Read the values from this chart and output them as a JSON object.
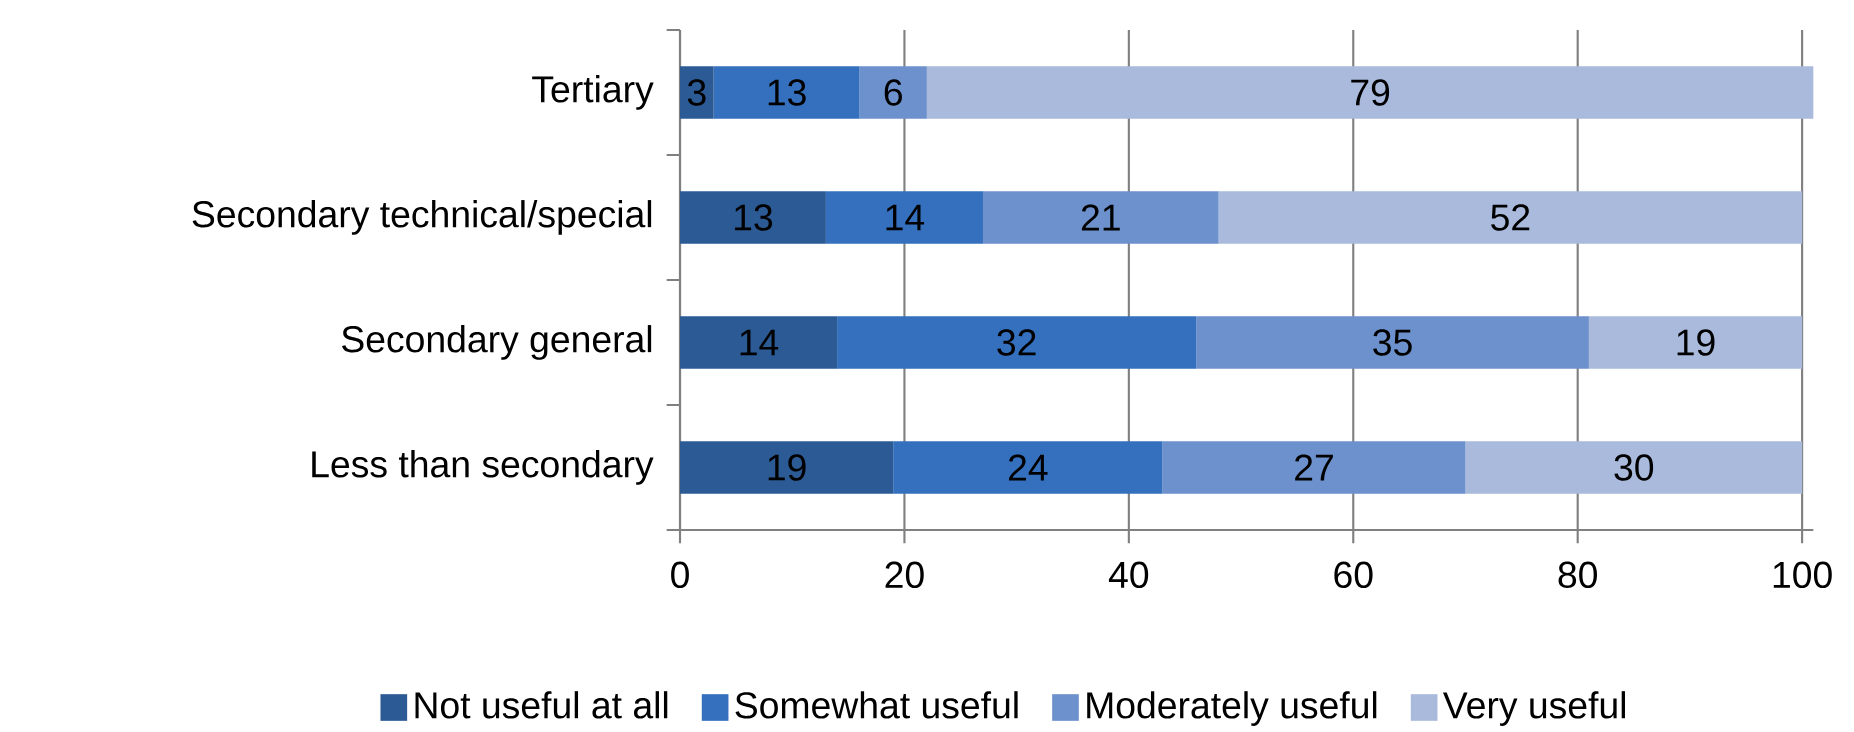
{
  "chart_data": {
    "type": "bar",
    "orientation": "horizontal",
    "stacked": true,
    "categories": [
      "Tertiary",
      "Secondary technical/special",
      "Secondary general",
      "Less than secondary"
    ],
    "series": [
      {
        "name": "Not useful at all",
        "color": "#2b5a94",
        "values": [
          3,
          13,
          14,
          19
        ]
      },
      {
        "name": "Somewhat useful",
        "color": "#3470bd",
        "values": [
          13,
          14,
          32,
          24
        ]
      },
      {
        "name": "Moderately useful",
        "color": "#6d91cc",
        "values": [
          6,
          21,
          35,
          27
        ]
      },
      {
        "name": "Very useful",
        "color": "#a9badc",
        "values": [
          79,
          52,
          19,
          30
        ]
      }
    ],
    "xlim": [
      0,
      101
    ],
    "xticks": [
      0,
      20,
      40,
      60,
      80,
      100
    ],
    "grid": "x",
    "legend": "bottom",
    "data_labels": true
  }
}
